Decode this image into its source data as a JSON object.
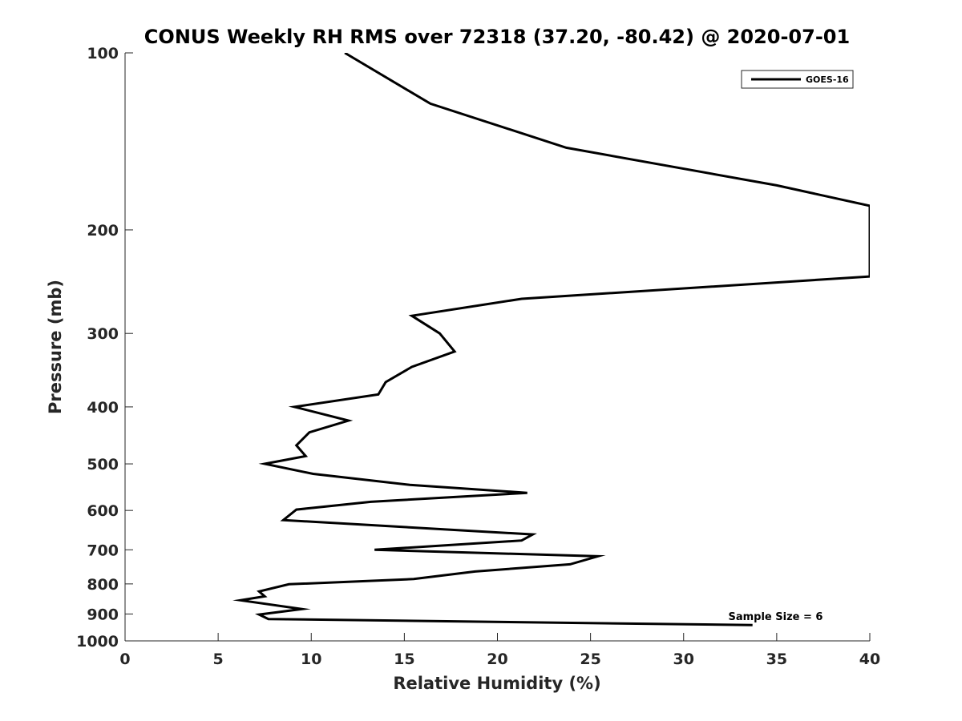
{
  "chart_data": {
    "type": "line",
    "title": "CONUS Weekly RH RMS over 72318 (37.20, -80.42) @ 2020-07-01",
    "xlabel": "Relative Humidity (%)",
    "ylabel": "Pressure (mb)",
    "xlim": [
      0,
      40
    ],
    "ylim": [
      100,
      1000
    ],
    "yscale": "log",
    "y_reversed": true,
    "grid": false,
    "legend_position": "top-right",
    "x_ticks": [
      0,
      5,
      10,
      15,
      20,
      25,
      30,
      35,
      40
    ],
    "x_tick_labels": [
      "0",
      "5",
      "10",
      "15",
      "20",
      "25",
      "30",
      "35",
      "40"
    ],
    "y_ticks": [
      100,
      200,
      300,
      400,
      500,
      600,
      700,
      800,
      900,
      1000
    ],
    "y_tick_labels": [
      "100",
      "200",
      "300",
      "400",
      "500",
      "600",
      "700",
      "800",
      "900",
      "1000"
    ],
    "series": [
      {
        "name": "GOES-16",
        "color": "#000000",
        "points": [
          [
            11.8,
            100
          ],
          [
            16.4,
            122
          ],
          [
            23.7,
            145
          ],
          [
            35.0,
            168
          ],
          [
            40.0,
            182
          ],
          [
            40.0,
            240
          ],
          [
            21.3,
            262
          ],
          [
            15.4,
            280
          ],
          [
            16.9,
            300
          ],
          [
            17.7,
            322
          ],
          [
            15.4,
            342
          ],
          [
            14.0,
            363
          ],
          [
            13.6,
            381
          ],
          [
            9.1,
            400
          ],
          [
            12.0,
            422
          ],
          [
            9.9,
            442
          ],
          [
            9.2,
            465
          ],
          [
            9.7,
            485
          ],
          [
            7.5,
            500
          ],
          [
            10.1,
            520
          ],
          [
            15.3,
            543
          ],
          [
            21.6,
            560
          ],
          [
            13.2,
            580
          ],
          [
            9.2,
            598
          ],
          [
            8.5,
            623
          ],
          [
            21.9,
            659
          ],
          [
            21.3,
            675
          ],
          [
            13.4,
            700
          ],
          [
            25.4,
            718
          ],
          [
            23.9,
            741
          ],
          [
            18.8,
            762
          ],
          [
            15.5,
            785
          ],
          [
            8.8,
            801
          ],
          [
            7.2,
            824
          ],
          [
            7.5,
            840
          ],
          [
            6.2,
            853
          ],
          [
            9.5,
            883
          ],
          [
            7.2,
            902
          ],
          [
            7.7,
            918
          ],
          [
            33.7,
            940
          ]
        ]
      }
    ],
    "annotations": [
      {
        "text": "Sample Size = 6",
        "x": 32.4,
        "y": 908
      }
    ]
  }
}
